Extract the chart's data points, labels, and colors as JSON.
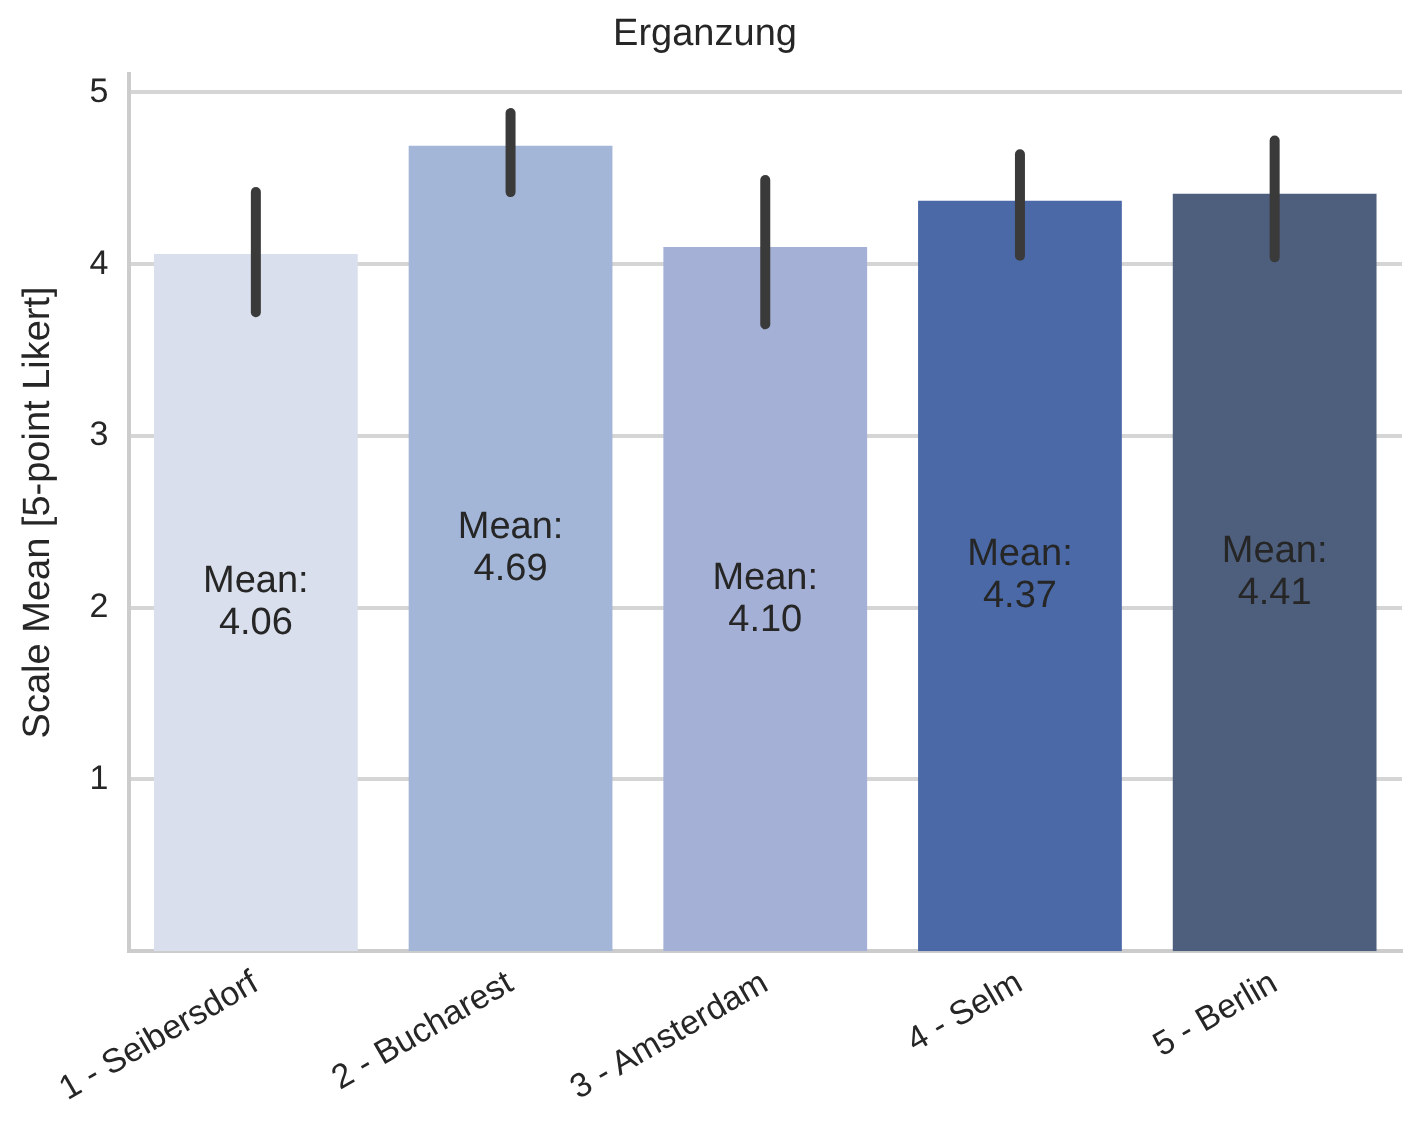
{
  "chart_data": {
    "type": "bar",
    "title": "Erganzung",
    "ylabel": "Scale Mean [5-point Likert]",
    "categories": [
      "1 - Seibersdorf",
      "2 - Bucharest",
      "3 - Amsterdam",
      "4 - Selm",
      "5 - Berlin"
    ],
    "values": [
      4.06,
      4.69,
      4.1,
      4.37,
      4.41
    ],
    "colors": [
      "#d9dfed",
      "#a3b6d8",
      "#a4b0d5",
      "#4a69a6",
      "#4e5f7e"
    ],
    "errors": [
      [
        3.72,
        4.42
      ],
      [
        4.42,
        4.88
      ],
      [
        3.65,
        4.49
      ],
      [
        4.05,
        4.64
      ],
      [
        4.04,
        4.72
      ]
    ],
    "value_labels": [
      "Mean:\n4.06",
      "Mean:\n4.69",
      "Mean:\n4.10",
      "Mean:\n4.37",
      "Mean:\n4.41"
    ],
    "ylim": [
      0,
      5.11
    ],
    "yticks": [
      1,
      2,
      3,
      4,
      5
    ],
    "grid": "y",
    "legend": false
  }
}
